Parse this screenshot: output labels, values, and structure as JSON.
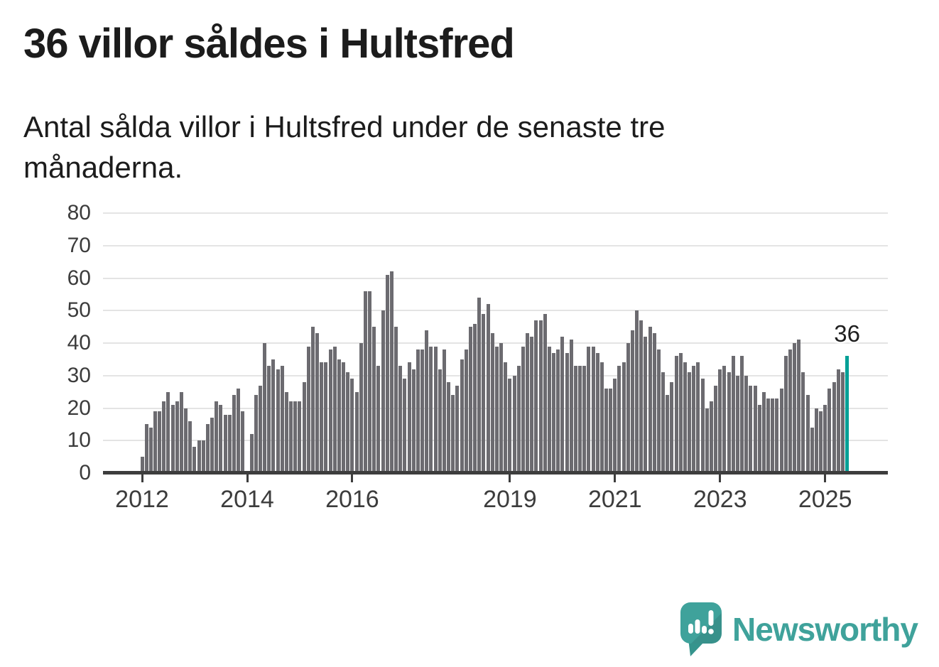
{
  "header": {
    "title": "36 villor såldes i Hultsfred",
    "subtitle": "Antal sålda villor i Hultsfred under de senaste tre månaderna."
  },
  "chart_data": {
    "type": "bar",
    "title": "36 villor såldes i Hultsfred",
    "subtitle": "Antal sålda villor i Hultsfred under de senaste tre månaderna.",
    "xlabel": "",
    "ylabel": "",
    "x_start": "2012-01",
    "x_freq": "monthly",
    "ylim": [
      0,
      80
    ],
    "ytick_step": 10,
    "grid": true,
    "legend": "none",
    "values": [
      5,
      15,
      14,
      19,
      19,
      22,
      25,
      21,
      22,
      25,
      20,
      16,
      8,
      10,
      10,
      15,
      17,
      22,
      21,
      18,
      18,
      24,
      26,
      19,
      null,
      12,
      24,
      27,
      40,
      33,
      35,
      32,
      33,
      25,
      22,
      22,
      22,
      28,
      39,
      45,
      43,
      34,
      34,
      38,
      39,
      35,
      34,
      31,
      29,
      25,
      40,
      56,
      56,
      45,
      33,
      50,
      61,
      62,
      45,
      33,
      29,
      34,
      32,
      38,
      38,
      44,
      39,
      39,
      32,
      38,
      28,
      24,
      27,
      35,
      38,
      45,
      46,
      54,
      49,
      52,
      43,
      39,
      40,
      34,
      29,
      30,
      33,
      39,
      43,
      42,
      47,
      47,
      49,
      39,
      37,
      38,
      42,
      37,
      41,
      33,
      33,
      33,
      39,
      39,
      37,
      34,
      26,
      26,
      29,
      33,
      34,
      40,
      44,
      50,
      47,
      42,
      45,
      43,
      38,
      31,
      24,
      28,
      36,
      37,
      34,
      31,
      33,
      34,
      29,
      20,
      22,
      27,
      32,
      33,
      31,
      36,
      30,
      36,
      30,
      27,
      27,
      21,
      25,
      23,
      23,
      23,
      26,
      36,
      38,
      40,
      41,
      31,
      24,
      14,
      20,
      19,
      21,
      26,
      28,
      32,
      31,
      36
    ],
    "highlight": {
      "index": 161,
      "value": 36,
      "label": "36"
    },
    "x_ticks": [
      {
        "label": "2012",
        "index": 0
      },
      {
        "label": "2014",
        "index": 24
      },
      {
        "label": "2016",
        "index": 48
      },
      {
        "label": "2019",
        "index": 84
      },
      {
        "label": "2021",
        "index": 108
      },
      {
        "label": "2023",
        "index": 132
      },
      {
        "label": "2025",
        "index": 156
      }
    ],
    "y_ticks": [
      0,
      10,
      20,
      30,
      40,
      50,
      60,
      70,
      80
    ]
  },
  "colors": {
    "bar": "#6c6b70",
    "accent": "#00a096",
    "grid": "#e4e4e4",
    "axis": "#3d3d3d",
    "text": "#1c1c1c",
    "logo": "#3fa29b"
  },
  "footer": {
    "brand": "Newsworthy"
  }
}
